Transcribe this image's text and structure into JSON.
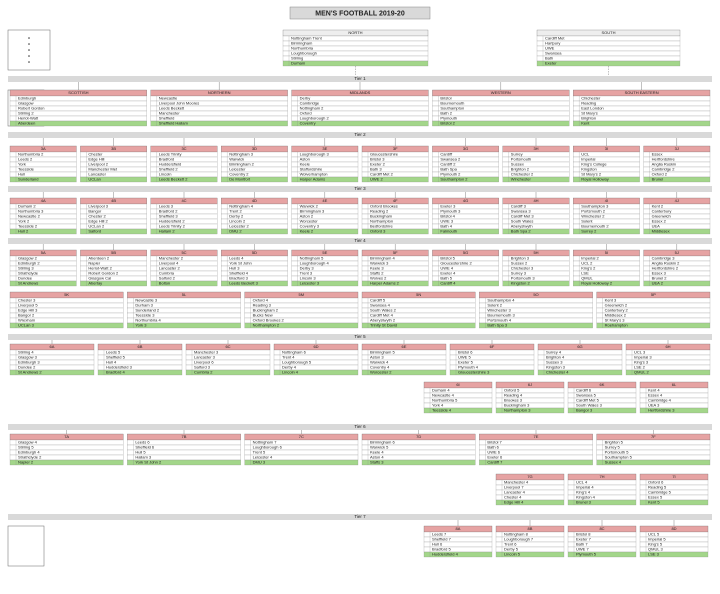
{
  "header": {
    "title": "MEN'S FOOTBALL 2019-20"
  },
  "settings": {
    "header_color": "#e6a3a3",
    "promotion_color": "#a3d68a",
    "band_color": "#d9d9d9"
  },
  "premier": [
    {
      "title": "NORTH",
      "teams": [
        "Nottingham Trent",
        "Birmingham",
        "Northumbria",
        "Loughborough",
        "Stirling",
        "Durham"
      ]
    },
    {
      "title": "SOUTH",
      "teams": [
        "Cardiff Met",
        "Hartpury",
        "UWE",
        "Swansea",
        "Bath",
        "Exeter"
      ]
    }
  ],
  "bands": [
    "Tier 1",
    "Tier 2",
    "Tier 3",
    "Tier 4",
    "Tier 5",
    "Tier 6",
    "Tier 7"
  ],
  "sections": [
    {
      "lines": [
        [
          {
            "title": "SCOTTISH",
            "teams": [
              "Edinburgh",
              "Glasgow",
              "Robert Gordon",
              "Stirling 2",
              "Heriot-Watt",
              "Aberdeen"
            ]
          },
          {
            "title": "NORTHERN",
            "teams": [
              "Newcastle",
              "Liverpool John Moores",
              "Leeds Beckett",
              "Manchester",
              "Sheffield",
              "Sheffield Hallam"
            ]
          },
          {
            "title": "MIDLANDS",
            "teams": [
              "Derby",
              "Cambridge",
              "Nottingham 2",
              "Oxford",
              "Loughborough 2",
              "Coventry"
            ]
          },
          {
            "title": "WESTERN",
            "teams": [
              "Bristol",
              "Bournemouth",
              "Southampton",
              "Bath 2",
              "Plymouth",
              "Bristol 2"
            ]
          },
          {
            "title": "SOUTH EASTERN",
            "teams": [
              "Chichester",
              "Reading",
              "East London",
              "St Mary's",
              "Brighton",
              "Kent"
            ]
          }
        ]
      ]
    },
    {
      "lines": [
        [
          {
            "title": "3A",
            "teams": [
              "Northumbria 2",
              "Leeds 2",
              "York",
              "Teesside",
              "Hull",
              "Sunderland"
            ]
          },
          {
            "title": "3B",
            "teams": [
              "Chester",
              "Edge Hill",
              "Liverpool 2",
              "Manchester Met",
              "Lancaster",
              "UCLan"
            ]
          },
          {
            "title": "3C",
            "teams": [
              "Leeds Trinity",
              "Bradford",
              "Huddersfield",
              "Sheffield 2",
              "Lincoln",
              "Leeds Beckett 2"
            ]
          },
          {
            "title": "3D",
            "teams": [
              "Nottingham 3",
              "Warwick",
              "Birmingham 2",
              "Leicester",
              "Coventry 2",
              "De Montfort"
            ]
          },
          {
            "title": "3E",
            "teams": [
              "Loughborough 3",
              "Aston",
              "Keele",
              "Staffordshire",
              "Wolverhampton",
              "Harper Adams"
            ]
          },
          {
            "title": "3F",
            "teams": [
              "Gloucestershire",
              "Bristol 3",
              "Exeter 2",
              "Bath 3",
              "Cardiff Met 2",
              "UWE 2"
            ]
          },
          {
            "title": "3G",
            "teams": [
              "Cardiff",
              "Swansea 2",
              "Cardiff 2",
              "Bath Spa",
              "Plymouth 2",
              "Southampton 2"
            ]
          },
          {
            "title": "3H",
            "teams": [
              "Surrey",
              "Portsmouth",
              "Sussex",
              "Brighton 2",
              "Chichester 2",
              "Winchester"
            ]
          },
          {
            "title": "3I",
            "teams": [
              "UCL",
              "Imperial",
              "King's College",
              "Kingston",
              "St Mary's 2",
              "Royal Holloway"
            ]
          },
          {
            "title": "3J",
            "teams": [
              "Essex",
              "Hertfordshire",
              "Anglia Ruskin",
              "Cambridge 2",
              "Oxford 2",
              "Brunel"
            ]
          }
        ]
      ]
    },
    {
      "lines": [
        [
          {
            "title": "4A",
            "teams": [
              "Durham 2",
              "Northumbria 3",
              "Newcastle 2",
              "York 2",
              "Teesside 2",
              "Hull 2"
            ]
          },
          {
            "title": "4B",
            "teams": [
              "Liverpool 3",
              "Bangor",
              "Chester 2",
              "Edge Hill 2",
              "UCLan 2",
              "Salford"
            ]
          },
          {
            "title": "4C",
            "teams": [
              "Leeds 3",
              "Bradford 2",
              "Sheffield 3",
              "Huddersfield 2",
              "Leeds Trinity 2",
              "Hallam 2"
            ]
          },
          {
            "title": "4D",
            "teams": [
              "Nottingham 4",
              "Trent 2",
              "Derby 2",
              "Lincoln 2",
              "Leicester 2",
              "DMU 2"
            ]
          },
          {
            "title": "4E",
            "teams": [
              "Warwick 2",
              "Birmingham 3",
              "Aston 2",
              "Worcester",
              "Coventry 3",
              "Keele 2"
            ]
          },
          {
            "title": "4F",
            "teams": [
              "Oxford Brookes",
              "Reading 2",
              "Buckingham",
              "Northampton",
              "Bedfordshire",
              "Oxford 3"
            ]
          },
          {
            "title": "4G",
            "teams": [
              "Exeter 3",
              "Plymouth 3",
              "Bristol 4",
              "UWE 3",
              "Bath 4",
              "Falmouth"
            ]
          },
          {
            "title": "4H",
            "teams": [
              "Cardiff 3",
              "Swansea 3",
              "Cardiff Met 3",
              "South Wales",
              "Aberystwyth",
              "Bath Spa 2"
            ]
          },
          {
            "title": "4I",
            "teams": [
              "Southampton 3",
              "Portsmouth 2",
              "Winchester 2",
              "Solent",
              "Bournemouth 2",
              "Surrey 2"
            ]
          },
          {
            "title": "4J",
            "teams": [
              "Kent 2",
              "Canterbury",
              "Greenwich",
              "Essex 2",
              "UEA",
              "Middlesex"
            ]
          }
        ]
      ]
    },
    {
      "lines": [
        [
          {
            "title": "5A",
            "teams": [
              "Glasgow 2",
              "Edinburgh 2",
              "Stirling 3",
              "Strathclyde",
              "Dundee",
              "St Andrews"
            ]
          },
          {
            "title": "5B",
            "teams": [
              "Aberdeen 2",
              "Napier",
              "Heriot-Watt 2",
              "Robert Gordon 2",
              "Glasgow Cal",
              "Abertay"
            ]
          },
          {
            "title": "5C",
            "teams": [
              "Manchester 2",
              "Liverpool 4",
              "Lancaster 2",
              "Cumbria",
              "Salford 2",
              "Bolton"
            ]
          },
          {
            "title": "5D",
            "teams": [
              "Leeds 4",
              "York St John",
              "Hull 3",
              "Sheffield 4",
              "Bradford 3",
              "Leeds Beckett 3"
            ]
          },
          {
            "title": "5E",
            "teams": [
              "Nottingham 5",
              "Loughborough 4",
              "Derby 3",
              "Trent 3",
              "Lincoln 3",
              "Leicester 3"
            ]
          },
          {
            "title": "5F",
            "teams": [
              "Birmingham 4",
              "Warwick 3",
              "Keele 3",
              "Staffs 2",
              "Wolves 2",
              "Harper Adams 2"
            ]
          },
          {
            "title": "5G",
            "teams": [
              "Bristol 5",
              "Gloucestershire 2",
              "UWE 4",
              "Exeter 4",
              "Bath 5",
              "Cardiff 4"
            ]
          },
          {
            "title": "5H",
            "teams": [
              "Brighton 3",
              "Sussex 2",
              "Chichester 3",
              "Surrey 3",
              "Portsmouth 3",
              "Kingston 2"
            ]
          },
          {
            "title": "5I",
            "teams": [
              "Imperial 2",
              "UCL 2",
              "King's 2",
              "LSE",
              "QMUL",
              "Royal Holloway 2"
            ]
          },
          {
            "title": "5J",
            "teams": [
              "Cambridge 3",
              "Anglia Ruskin 2",
              "Hertfordshire 2",
              "Essex 3",
              "Brunel 2",
              "UEA 2"
            ]
          }
        ],
        [
          {
            "title": "5K",
            "teams": [
              "Chester 3",
              "Liverpool 5",
              "Edge Hill 3",
              "Bangor 2",
              "Wrexham",
              "UCLan 3"
            ]
          },
          {
            "title": "5L",
            "teams": [
              "Newcastle 3",
              "Durham 3",
              "Sunderland 2",
              "Teesside 3",
              "Northumbria 4",
              "York 3"
            ]
          },
          {
            "title": "5M",
            "teams": [
              "Oxford 4",
              "Reading 3",
              "Buckingham 2",
              "Bucks New",
              "Oxford Brookes 2",
              "Northampton 2"
            ]
          },
          {
            "title": "5N",
            "teams": [
              "Cardiff 5",
              "Swansea 4",
              "South Wales 2",
              "Cardiff Met 4",
              "Aberystwyth 2",
              "Trinity St David"
            ]
          },
          {
            "title": "5O",
            "teams": [
              "Southampton 4",
              "Solent 2",
              "Winchester 3",
              "Bournemouth 3",
              "Portsmouth 4",
              "Bath Spa 3"
            ]
          },
          {
            "title": "5P",
            "teams": [
              "Kent 3",
              "Greenwich 2",
              "Canterbury 2",
              "Middlesex 2",
              "St Mary's 3",
              "Roehampton"
            ]
          }
        ]
      ]
    },
    {
      "lines": [
        [
          {
            "title": "6A",
            "teams": [
              "Stirling 4",
              "Glasgow 3",
              "Edinburgh 3",
              "Dundee 2",
              "St Andrews 2"
            ]
          },
          {
            "title": "6B",
            "teams": [
              "Leeds 5",
              "Sheffield 5",
              "Hull 4",
              "Huddersfield 3",
              "Bradford 4"
            ]
          },
          {
            "title": "6C",
            "teams": [
              "Manchester 3",
              "Lancaster 3",
              "Liverpool 6",
              "Salford 3",
              "Cumbria 2"
            ]
          },
          {
            "title": "6D",
            "teams": [
              "Nottingham 6",
              "Trent 4",
              "Loughborough 5",
              "Derby 4",
              "Lincoln 4"
            ]
          },
          {
            "title": "6E",
            "teams": [
              "Birmingham 5",
              "Aston 3",
              "Warwick 4",
              "Coventry 4",
              "Worcester 2"
            ]
          },
          {
            "title": "6F",
            "teams": [
              "Bristol 6",
              "UWE 5",
              "Exeter 5",
              "Plymouth 4",
              "Gloucestershire 3"
            ]
          },
          {
            "title": "6G",
            "teams": [
              "Surrey 4",
              "Brighton 4",
              "Sussex 3",
              "Kingston 3",
              "Chichester 4"
            ]
          },
          {
            "title": "6H",
            "teams": [
              "UCL 3",
              "Imperial 3",
              "King's 3",
              "LSE 2",
              "QMUL 2"
            ]
          }
        ],
        [
          {
            "title": "6I",
            "teams": [
              "Durham 4",
              "Newcastle 4",
              "Northumbria 5",
              "York 4",
              "Teesside 4"
            ]
          },
          {
            "title": "6J",
            "teams": [
              "Oxford 5",
              "Reading 4",
              "Brookes 3",
              "Buckingham 3",
              "Northampton 3"
            ]
          },
          {
            "title": "6K",
            "teams": [
              "Cardiff 6",
              "Swansea 5",
              "Cardiff Met 5",
              "South Wales 3",
              "Bangor 3"
            ]
          },
          {
            "title": "6L",
            "teams": [
              "Kent 4",
              "Essex 4",
              "Cambridge 4",
              "UEA 3",
              "Hertfordshire 3"
            ]
          }
        ]
      ]
    },
    {
      "lines": [
        [
          {
            "title": "7A",
            "teams": [
              "Glasgow 4",
              "Stirling 5",
              "Edinburgh 4",
              "Strathclyde 2",
              "Napier 2"
            ]
          },
          {
            "title": "7B",
            "teams": [
              "Leeds 6",
              "Sheffield 6",
              "Hull 5",
              "Hallam 3",
              "York St John 2"
            ]
          },
          {
            "title": "7C",
            "teams": [
              "Nottingham 7",
              "Loughborough 6",
              "Trent 5",
              "Leicester 4",
              "DMU 3"
            ]
          },
          {
            "title": "7D",
            "teams": [
              "Birmingham 6",
              "Warwick 5",
              "Keele 4",
              "Aston 4",
              "Staffs 3"
            ]
          },
          {
            "title": "7E",
            "teams": [
              "Bristol 7",
              "Bath 6",
              "UWE 6",
              "Exeter 6",
              "Cardiff 7"
            ]
          },
          {
            "title": "7F",
            "teams": [
              "Brighton 5",
              "Surrey 5",
              "Portsmouth 5",
              "Southampton 5",
              "Sussex 4"
            ]
          }
        ],
        [
          {
            "title": "7G",
            "teams": [
              "Manchester 4",
              "Liverpool 7",
              "Lancaster 4",
              "Chester 4",
              "Edge Hill 4"
            ]
          },
          {
            "title": "7H",
            "teams": [
              "UCL 4",
              "Imperial 4",
              "King's 4",
              "Kingston 4",
              "Brunel 3"
            ]
          },
          {
            "title": "7I",
            "teams": [
              "Oxford 6",
              "Reading 5",
              "Cambridge 5",
              "Essex 5",
              "Kent 5"
            ]
          }
        ]
      ]
    },
    {
      "lines": [
        [
          {
            "title": "8A",
            "teams": [
              "Leeds 7",
              "Sheffield 7",
              "Hull 6",
              "Bradford 5",
              "Huddersfield 4"
            ]
          },
          {
            "title": "8B",
            "teams": [
              "Nottingham 8",
              "Loughborough 7",
              "Trent 6",
              "Derby 5",
              "Lincoln 5"
            ]
          },
          {
            "title": "8C",
            "teams": [
              "Bristol 8",
              "Exeter 7",
              "Bath 7",
              "UWE 7",
              "Plymouth 5"
            ]
          },
          {
            "title": "8D",
            "teams": [
              "UCL 5",
              "Imperial 5",
              "King's 5",
              "QMUL 3",
              "LSE 3"
            ]
          }
        ]
      ]
    }
  ]
}
